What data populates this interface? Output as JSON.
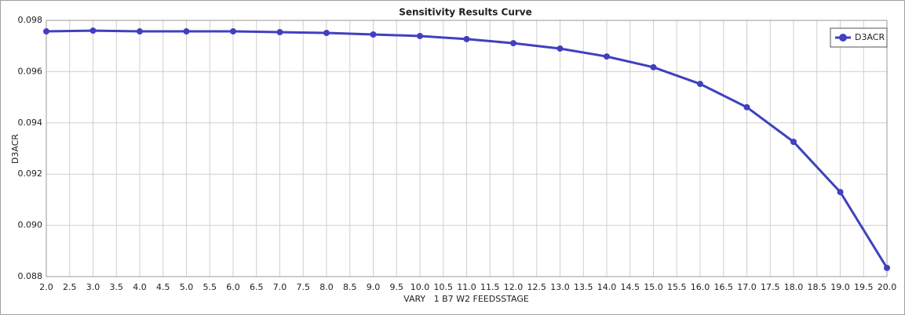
{
  "chart_data": {
    "type": "line",
    "title": "Sensitivity Results Curve",
    "x_label": "VARY   1 B7 W2 FEEDSSTAGE",
    "y_label": "D3ACR",
    "x": [
      2,
      3,
      4,
      5,
      6,
      7,
      8,
      9,
      10,
      11,
      12,
      13,
      14,
      15,
      16,
      17,
      18,
      19,
      20
    ],
    "series": [
      {
        "name": "D3ACR",
        "color": "#4040c0",
        "values": [
          0.09757,
          0.0976,
          0.09757,
          0.09757,
          0.09757,
          0.09754,
          0.09751,
          0.09745,
          0.09739,
          0.09727,
          0.09711,
          0.0969,
          0.09659,
          0.09617,
          0.09552,
          0.09461,
          0.09326,
          0.0913,
          0.08834
        ]
      }
    ],
    "xlim": [
      2,
      20
    ],
    "xticks": [
      {
        "value": 2,
        "label": "2.0"
      },
      2.5,
      {
        "value": 3,
        "label": "3.0"
      },
      3.5,
      {
        "value": 4,
        "label": "4.0"
      },
      4.5,
      {
        "value": 5,
        "label": "5.0"
      },
      5.5,
      {
        "value": 6,
        "label": "6.0"
      },
      6.5,
      {
        "value": 7,
        "label": "7.0"
      },
      7.5,
      {
        "value": 8,
        "label": "8.0"
      },
      8.5,
      {
        "value": 9,
        "label": "9.0"
      },
      9.5,
      {
        "value": 10,
        "label": "10.0"
      },
      10.5,
      {
        "value": 11,
        "label": "11.0"
      },
      11.5,
      {
        "value": 12,
        "label": "12.0"
      },
      12.5,
      {
        "value": 13,
        "label": "13.0"
      },
      13.5,
      {
        "value": 14,
        "label": "14.0"
      },
      14.5,
      {
        "value": 15,
        "label": "15.0"
      },
      15.5,
      {
        "value": 16,
        "label": "16.0"
      },
      16.5,
      {
        "value": 17,
        "label": "17.0"
      },
      17.5,
      {
        "value": 18,
        "label": "18.0"
      },
      18.5,
      {
        "value": 19,
        "label": "19.0"
      },
      19.5,
      {
        "value": 20,
        "label": "20.0"
      }
    ],
    "ylim": [
      0.088,
      0.098
    ],
    "yticks": [
      0.088,
      {
        "value": 0.09,
        "label": "0.090"
      },
      0.092,
      0.094,
      0.096,
      0.098
    ],
    "grid": true,
    "legend": "top-right"
  }
}
